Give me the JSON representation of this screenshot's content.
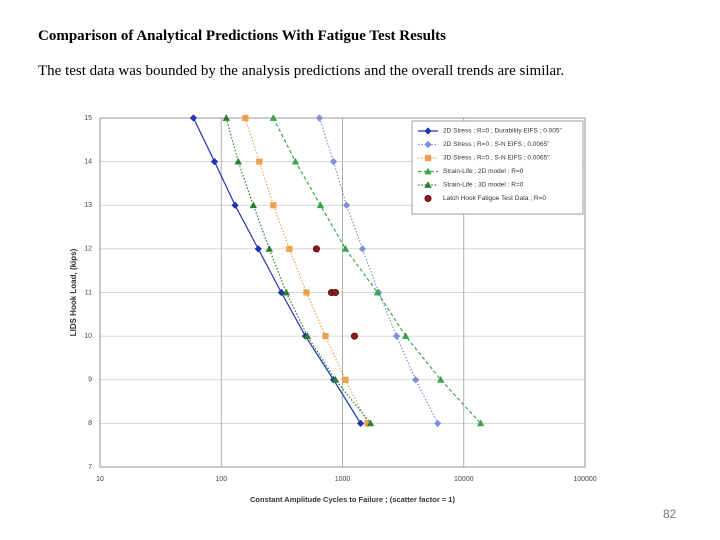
{
  "title": "Comparison of Analytical Predictions With Fatigue Test Results",
  "subtitle": "The test data was bounded by the analysis predictions and the overall trends are similar.",
  "page_number": "82",
  "chart_data": {
    "type": "line",
    "x_label": "Constant Amplitude Cycles to Failure ; (scatter factor = 1)",
    "y_label": "LIDS Hook Load, (kips)",
    "xscale": "log",
    "xlim": [
      10,
      100000
    ],
    "xticks": [
      10,
      100,
      1000,
      10000,
      100000
    ],
    "ylim": [
      7,
      15
    ],
    "yticks": [
      7,
      8,
      9,
      10,
      11,
      12,
      13,
      14,
      15
    ],
    "grid": true,
    "legend": "top-right",
    "series": [
      {
        "name": "2D Stress ; R=0 ; Durability EIFS ; 0.005\"",
        "color": "#1f35b0",
        "marker": "diamond",
        "line": "solid",
        "x": [
          59,
          88,
          130,
          202,
          313,
          494,
          843,
          1410
        ],
        "values": [
          15,
          14,
          13,
          12,
          11,
          10,
          9,
          8
        ]
      },
      {
        "name": "2D Stress ; R=0 ; S-N EIFS ; 0.0065\"",
        "color": "#7d8ee0",
        "marker": "diamond",
        "line": "dotted",
        "x": [
          646,
          843,
          1080,
          1462,
          1985,
          2795,
          4010,
          6095
        ],
        "values": [
          15,
          14,
          13,
          12,
          11,
          10,
          9,
          8
        ]
      },
      {
        "name": "3D Stress ; R=0 ; S-N EIFS ; 0.0065\"",
        "color": "#f0a04c",
        "marker": "square",
        "line": "dotted",
        "x": [
          158,
          206,
          269,
          365,
          504,
          724,
          1059,
          1610
        ],
        "values": [
          15,
          14,
          13,
          12,
          11,
          10,
          9,
          8
        ]
      },
      {
        "name": "Strain-Life ; 2D model ; R=0",
        "color": "#3aa64a",
        "marker": "triangle",
        "line": "dashed",
        "x": [
          269,
          409,
          658,
          1059,
          1945,
          3320,
          6460,
          13800
        ],
        "values": [
          15,
          14,
          13,
          12,
          11,
          10,
          9,
          8
        ]
      },
      {
        "name": "Strain-Life ; 3D model ; R=0",
        "color": "#2f7d33",
        "marker": "triangle",
        "line": "dotted",
        "x": [
          110,
          138,
          184,
          249,
          344,
          514,
          875,
          1702
        ],
        "values": [
          15,
          14,
          13,
          12,
          11,
          10,
          9,
          8
        ]
      },
      {
        "name": "Latch Hook Fatigue Test Data ; R=0",
        "color": "#8b1a1a",
        "marker": "circle",
        "line": "none",
        "x": [
          610,
          811,
          875,
          1256
        ],
        "values": [
          12,
          11,
          11,
          10
        ]
      }
    ]
  }
}
